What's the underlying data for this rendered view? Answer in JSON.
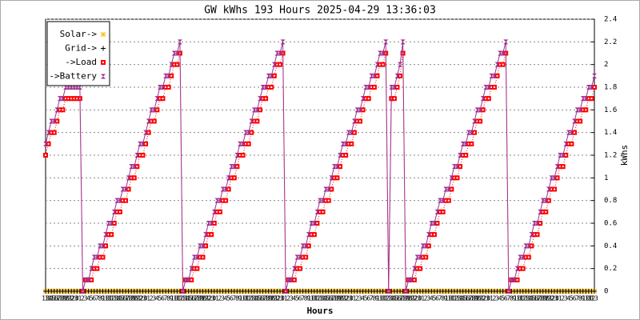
{
  "chart_data": {
    "type": "line",
    "title": "GW kWhs 193 Hours 2025-04-29 13:36:03",
    "x_label": "Hours",
    "y_label": "kWhs",
    "ylim": [
      0,
      2.4
    ],
    "yticks": [
      0,
      0.2,
      0.4,
      0.6,
      0.8,
      1,
      1.2,
      1.4,
      1.6,
      1.8,
      2,
      2.2,
      2.4
    ],
    "grid": true,
    "legend": "top-left",
    "categories": [
      "13",
      "14",
      "15",
      "16",
      "17",
      "18",
      "19",
      "20",
      "21",
      "22",
      "23",
      "0",
      "1",
      "2",
      "3",
      "4",
      "5",
      "6",
      "7",
      "8",
      "9",
      "10",
      "11",
      "12",
      "13",
      "14",
      "15",
      "16",
      "17",
      "18",
      "19",
      "20",
      "21",
      "22",
      "23",
      "0",
      "1",
      "2",
      "3",
      "4",
      "5",
      "6",
      "7",
      "8",
      "9",
      "10",
      "11",
      "12",
      "13",
      "14",
      "15",
      "16",
      "17",
      "18",
      "19",
      "20",
      "21",
      "22",
      "23",
      "0",
      "1",
      "2",
      "3",
      "4",
      "5",
      "6",
      "7",
      "8",
      "9",
      "10",
      "11",
      "12",
      "13",
      "14",
      "15",
      "16",
      "17",
      "18",
      "19",
      "20",
      "21",
      "22",
      "23",
      "0",
      "1",
      "2",
      "3",
      "4",
      "5",
      "6",
      "7",
      "8",
      "9",
      "10",
      "11",
      "12",
      "13",
      "14",
      "15",
      "16",
      "17",
      "18",
      "19",
      "20",
      "21",
      "22",
      "23",
      "0",
      "1",
      "2",
      "3",
      "4",
      "5",
      "6",
      "7",
      "8",
      "9",
      "10",
      "11",
      "12",
      "13",
      "14",
      "15",
      "16",
      "17",
      "18",
      "19",
      "20",
      "21",
      "22",
      "23",
      "0",
      "1",
      "2",
      "3",
      "4",
      "5",
      "6",
      "7",
      "8",
      "9",
      "10",
      "11",
      "12",
      "13",
      "14",
      "15",
      "16",
      "17",
      "18",
      "19",
      "20",
      "21",
      "22",
      "23",
      "0",
      "1",
      "2",
      "3",
      "4",
      "5",
      "6",
      "7",
      "8",
      "9",
      "10",
      "11",
      "12",
      "13",
      "14",
      "15",
      "16",
      "17",
      "18",
      "19",
      "20",
      "21",
      "22",
      "23",
      "0",
      "1",
      "2",
      "3",
      "4",
      "5",
      "6",
      "7",
      "8",
      "9",
      "10",
      "11",
      "12",
      "13"
    ],
    "series": [
      {
        "name": "Solar->",
        "color": "#ffc020",
        "marker": "star",
        "values": [
          0,
          0,
          0,
          0,
          0,
          0,
          0,
          0,
          0,
          0,
          0,
          0,
          0,
          0,
          0,
          0,
          0,
          0,
          0,
          0,
          0,
          0,
          0,
          0,
          0,
          0,
          0,
          0,
          0,
          0,
          0,
          0,
          0,
          0,
          0,
          0,
          0,
          0,
          0,
          0,
          0,
          0,
          0,
          0,
          0,
          0,
          0,
          0,
          0,
          0,
          0,
          0,
          0,
          0,
          0,
          0,
          0,
          0,
          0,
          0,
          0,
          0,
          0,
          0,
          0,
          0,
          0,
          0,
          0,
          0,
          0,
          0,
          0,
          0,
          0,
          0,
          0,
          0,
          0,
          0,
          0,
          0,
          0,
          0,
          0,
          0,
          0,
          0,
          0,
          0,
          0,
          0,
          0,
          0,
          0,
          0,
          0,
          0,
          0,
          0,
          0,
          0,
          0,
          0,
          0,
          0,
          0,
          0,
          0,
          0,
          0,
          0,
          0,
          0,
          0,
          0,
          0,
          0,
          0,
          0,
          0,
          0,
          0,
          0,
          0,
          0,
          0,
          0,
          0,
          0,
          0,
          0,
          0,
          0,
          0,
          0,
          0,
          0,
          0,
          0,
          0,
          0,
          0,
          0,
          0,
          0,
          0,
          0,
          0,
          0,
          0,
          0,
          0,
          0,
          0,
          0,
          0,
          0,
          0,
          0,
          0,
          0,
          0,
          0,
          0,
          0,
          0,
          0,
          0,
          0,
          0,
          0,
          0,
          0,
          0,
          0,
          0,
          0,
          0,
          0,
          0,
          0,
          0,
          0,
          0,
          0,
          0,
          0,
          0,
          0,
          0,
          0,
          0
        ]
      },
      {
        "name": "Grid->",
        "color": "#000000",
        "marker": "plus",
        "values": [
          0,
          0,
          0,
          0,
          0,
          0,
          0,
          0,
          0,
          0,
          0,
          0,
          0,
          0,
          0,
          0,
          0,
          0,
          0,
          0,
          0,
          0,
          0,
          0,
          0,
          0,
          0,
          0,
          0,
          0,
          0,
          0,
          0,
          0,
          0,
          0,
          0,
          0,
          0,
          0,
          0,
          0,
          0,
          0,
          0,
          0,
          0,
          0,
          0,
          0,
          0,
          0,
          0,
          0,
          0,
          0,
          0,
          0,
          0,
          0,
          0,
          0,
          0,
          0,
          0,
          0,
          0,
          0,
          0,
          0,
          0,
          0,
          0,
          0,
          0,
          0,
          0,
          0,
          0,
          0,
          0,
          0,
          0,
          0,
          0,
          0,
          0,
          0,
          0,
          0,
          0,
          0,
          0,
          0,
          0,
          0,
          0,
          0,
          0,
          0,
          0,
          0,
          0,
          0,
          0,
          0,
          0,
          0,
          0,
          0,
          0,
          0,
          0,
          0,
          0,
          0,
          0,
          0,
          0,
          0,
          0,
          0,
          0,
          0,
          0,
          0,
          0,
          0,
          0,
          0,
          0,
          0,
          0,
          0,
          0,
          0,
          0,
          0,
          0,
          0,
          0,
          0,
          0,
          0,
          0,
          0,
          0,
          0,
          0,
          0,
          0,
          0,
          0,
          0,
          0,
          0,
          0,
          0,
          0,
          0,
          0,
          0,
          0,
          0,
          0,
          0,
          0,
          0,
          0,
          0,
          0,
          0,
          0,
          0,
          0,
          0,
          0,
          0,
          0,
          0,
          0,
          0,
          0,
          0,
          0,
          0,
          0,
          0,
          0,
          0,
          0,
          0,
          0
        ]
      },
      {
        "name": "->Load",
        "color": "#ff0000",
        "marker": "square",
        "values": [
          1.2,
          1.3,
          1.4,
          1.4,
          1.5,
          1.6,
          1.6,
          1.7,
          1.7,
          1.7,
          1.7,
          1.7,
          1.7,
          0,
          0.1,
          0.1,
          0.1,
          0.2,
          0.2,
          0.3,
          0.3,
          0.4,
          0.5,
          0.5,
          0.6,
          0.7,
          0.7,
          0.8,
          0.8,
          0.9,
          1,
          1,
          1.1,
          1.2,
          1.2,
          1.3,
          1.4,
          1.5,
          1.5,
          1.6,
          1.7,
          1.7,
          1.8,
          1.8,
          1.9,
          2,
          2,
          2.1,
          0,
          0.1,
          0.1,
          0.1,
          0.2,
          0.2,
          0.3,
          0.3,
          0.4,
          0.5,
          0.5,
          0.6,
          0.7,
          0.7,
          0.8,
          0.8,
          0.9,
          1,
          1,
          1.1,
          1.2,
          1.2,
          1.3,
          1.3,
          1.4,
          1.5,
          1.5,
          1.6,
          1.7,
          1.7,
          1.8,
          1.8,
          1.9,
          2,
          2,
          2.1,
          0,
          0.1,
          0.1,
          0.1,
          0.2,
          0.2,
          0.3,
          0.3,
          0.4,
          0.5,
          0.5,
          0.6,
          0.7,
          0.7,
          0.8,
          0.8,
          0.9,
          1,
          1,
          1.1,
          1.2,
          1.2,
          1.3,
          1.3,
          1.4,
          1.5,
          1.5,
          1.6,
          1.7,
          1.7,
          1.8,
          1.8,
          1.9,
          2,
          2,
          2.1,
          0,
          1.7,
          1.7,
          1.8,
          1.9,
          2.1,
          0,
          0.1,
          0.1,
          0.1,
          0.2,
          0.2,
          0.3,
          0.3,
          0.4,
          0.5,
          0.5,
          0.6,
          0.7,
          0.7,
          0.8,
          0.8,
          0.9,
          1,
          1,
          1.1,
          1.2,
          1.2,
          1.3,
          1.3,
          1.4,
          1.5,
          1.5,
          1.6,
          1.7,
          1.7,
          1.8,
          1.8,
          1.9,
          2,
          2,
          2.1,
          0,
          0.1,
          0.1,
          0.1,
          0.2,
          0.2,
          0.3,
          0.3,
          0.4,
          0.5,
          0.5,
          0.6,
          0.7,
          0.7,
          0.8,
          0.9,
          0.9,
          1,
          1.1,
          1.1,
          1.2,
          1.3,
          1.3,
          1.4,
          1.5,
          1.5,
          1.6,
          1.6,
          1.7,
          1.7,
          1.8
        ]
      },
      {
        "name": "->Battery",
        "color": "#a03090",
        "marker": "hourglass",
        "values": [
          1.3,
          1.4,
          1.5,
          1.5,
          1.6,
          1.7,
          1.7,
          1.8,
          1.8,
          1.8,
          1.8,
          1.8,
          1.8,
          0,
          0.1,
          0.1,
          0.2,
          0.3,
          0.3,
          0.4,
          0.4,
          0.5,
          0.6,
          0.6,
          0.7,
          0.8,
          0.8,
          0.9,
          0.9,
          1,
          1.1,
          1.1,
          1.2,
          1.3,
          1.3,
          1.4,
          1.5,
          1.6,
          1.6,
          1.7,
          1.8,
          1.8,
          1.9,
          1.9,
          2,
          2.1,
          2.1,
          2.2,
          0,
          0.1,
          0.1,
          0.2,
          0.3,
          0.3,
          0.4,
          0.4,
          0.5,
          0.6,
          0.6,
          0.7,
          0.8,
          0.8,
          0.9,
          0.9,
          1,
          1.1,
          1.1,
          1.2,
          1.3,
          1.3,
          1.4,
          1.4,
          1.5,
          1.6,
          1.6,
          1.7,
          1.8,
          1.8,
          1.9,
          1.9,
          2,
          2.1,
          2.1,
          2.2,
          0,
          0.1,
          0.1,
          0.2,
          0.3,
          0.3,
          0.4,
          0.4,
          0.5,
          0.6,
          0.6,
          0.7,
          0.8,
          0.8,
          0.9,
          0.9,
          1,
          1.1,
          1.1,
          1.2,
          1.3,
          1.3,
          1.4,
          1.4,
          1.5,
          1.6,
          1.6,
          1.7,
          1.8,
          1.8,
          1.9,
          1.9,
          2,
          2.1,
          2.1,
          2.2,
          0,
          1.8,
          1.8,
          1.9,
          2,
          2.2,
          0,
          0.1,
          0.1,
          0.2,
          0.3,
          0.3,
          0.4,
          0.4,
          0.5,
          0.6,
          0.6,
          0.7,
          0.8,
          0.8,
          0.9,
          0.9,
          1,
          1.1,
          1.1,
          1.2,
          1.3,
          1.3,
          1.4,
          1.4,
          1.5,
          1.6,
          1.6,
          1.7,
          1.8,
          1.8,
          1.9,
          1.9,
          2,
          2.1,
          2.1,
          2.2,
          0,
          0.1,
          0.1,
          0.2,
          0.3,
          0.3,
          0.4,
          0.4,
          0.5,
          0.6,
          0.6,
          0.7,
          0.8,
          0.8,
          0.9,
          1,
          1,
          1.1,
          1.2,
          1.2,
          1.3,
          1.4,
          1.4,
          1.5,
          1.6,
          1.6,
          1.7,
          1.7,
          1.8,
          1.8,
          1.9
        ]
      }
    ]
  }
}
